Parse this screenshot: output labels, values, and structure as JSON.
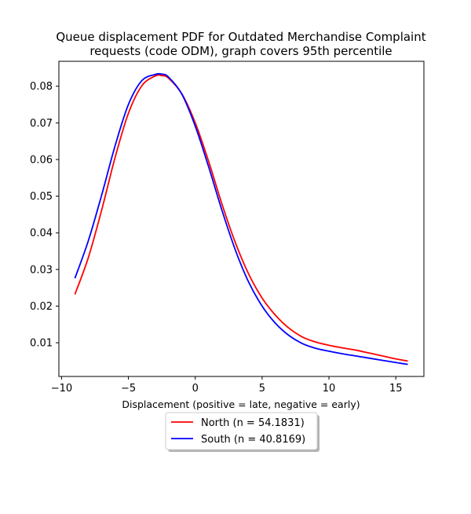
{
  "chart_data": {
    "type": "line",
    "title_lines": [
      "Queue displacement PDF for Outdated Merchandise Complaint",
      "requests (code ODM), graph covers 95th percentile"
    ],
    "xlabel": "Displacement (positive = late, negative = early)",
    "ylabel": "",
    "xlim": [
      -10.2,
      17.1
    ],
    "ylim": [
      0.0008,
      0.0868
    ],
    "x_ticks": [
      -10,
      -5,
      0,
      5,
      10,
      15
    ],
    "y_ticks": [
      0.01,
      0.02,
      0.03,
      0.04,
      0.05,
      0.06,
      0.07,
      0.08
    ],
    "grid": false,
    "legend_placement": "below plot, centered",
    "series": [
      {
        "name": "North (n = 54.1831)",
        "color": "#ff0000",
        "points": [
          [
            -9,
            0.0232
          ],
          [
            -8,
            0.0332
          ],
          [
            -7,
            0.0462
          ],
          [
            -6,
            0.0605
          ],
          [
            -5,
            0.0726
          ],
          [
            -4,
            0.0801
          ],
          [
            -3,
            0.0828
          ],
          [
            -2.5,
            0.0829
          ],
          [
            -2,
            0.0822
          ],
          [
            -1,
            0.0779
          ],
          [
            0,
            0.07
          ],
          [
            1,
            0.0595
          ],
          [
            2,
            0.0478
          ],
          [
            3,
            0.0373
          ],
          [
            4,
            0.0287
          ],
          [
            5,
            0.0222
          ],
          [
            6,
            0.0175
          ],
          [
            7,
            0.014
          ],
          [
            8,
            0.0116
          ],
          [
            9,
            0.0102
          ],
          [
            10,
            0.0093
          ],
          [
            11,
            0.0086
          ],
          [
            12,
            0.008
          ],
          [
            13,
            0.0072
          ],
          [
            14,
            0.0064
          ],
          [
            15,
            0.0056
          ],
          [
            15.9,
            0.005
          ]
        ]
      },
      {
        "name": "South (n = 40.8169)",
        "color": "#0000ff",
        "points": [
          [
            -9,
            0.0276
          ],
          [
            -8,
            0.0378
          ],
          [
            -7,
            0.0503
          ],
          [
            -6,
            0.0637
          ],
          [
            -5,
            0.075
          ],
          [
            -4,
            0.0815
          ],
          [
            -3,
            0.0832
          ],
          [
            -2.5,
            0.0833
          ],
          [
            -2,
            0.0825
          ],
          [
            -1,
            0.0778
          ],
          [
            0,
            0.0691
          ],
          [
            1,
            0.058
          ],
          [
            2,
            0.0461
          ],
          [
            3,
            0.0353
          ],
          [
            4,
            0.0265
          ],
          [
            5,
            0.02
          ],
          [
            6,
            0.0153
          ],
          [
            7,
            0.012
          ],
          [
            8,
            0.0098
          ],
          [
            9,
            0.0085
          ],
          [
            10,
            0.0077
          ],
          [
            11,
            0.007
          ],
          [
            12,
            0.0064
          ],
          [
            13,
            0.0058
          ],
          [
            14,
            0.0052
          ],
          [
            15,
            0.0046
          ],
          [
            15.9,
            0.0041
          ]
        ]
      }
    ]
  }
}
